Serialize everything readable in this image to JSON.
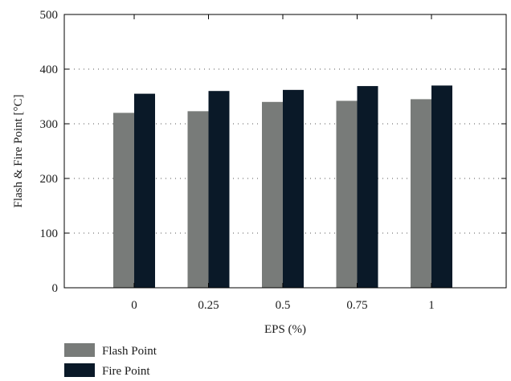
{
  "chart_data": {
    "type": "bar",
    "title": "",
    "xlabel": "EPS (%)",
    "ylabel": "Flash & Fire Point [°C]",
    "categories": [
      "0",
      "0.25",
      "0.5",
      "0.75",
      "1"
    ],
    "ylim": [
      0,
      500
    ],
    "yticks": [
      "0",
      "100",
      "200",
      "300",
      "400",
      "500"
    ],
    "grid": true,
    "legend_position": "bottom-left",
    "series": [
      {
        "name": "Flash Point",
        "color": "#787b79",
        "values": [
          320,
          323,
          340,
          342,
          345
        ]
      },
      {
        "name": "Fire Point",
        "color": "#0a1928",
        "values": [
          355,
          360,
          362,
          369,
          370
        ]
      }
    ]
  }
}
